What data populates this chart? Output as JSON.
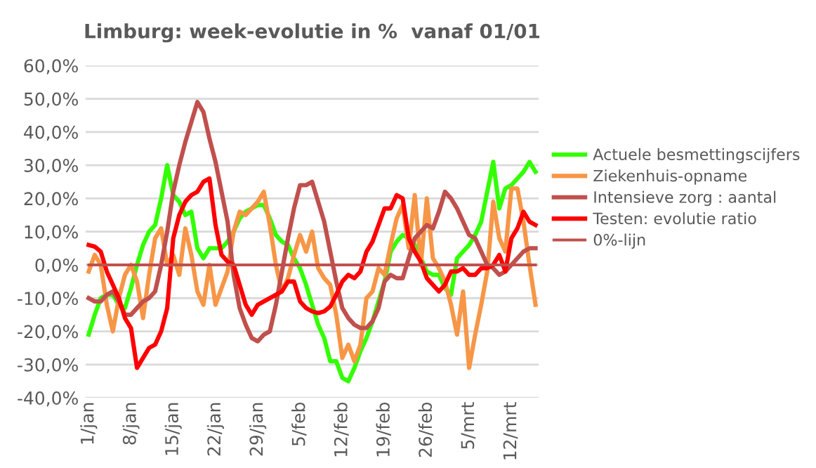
{
  "chart_data": {
    "type": "line",
    "title": "Limburg: week-evolutie in %  vanaf 01/01",
    "categories": [
      "1/jan",
      null,
      null,
      null,
      null,
      null,
      null,
      "8/jan",
      null,
      null,
      null,
      null,
      null,
      null,
      "15/jan",
      null,
      null,
      null,
      null,
      null,
      null,
      "22/jan",
      null,
      null,
      null,
      null,
      null,
      null,
      "29/jan",
      null,
      null,
      null,
      null,
      null,
      null,
      "5/feb",
      null,
      null,
      null,
      null,
      null,
      null,
      "12/feb",
      null,
      null,
      null,
      null,
      null,
      null,
      "19/feb",
      null,
      null,
      null,
      null,
      null,
      null,
      "26/feb",
      null,
      null,
      null,
      null,
      null,
      null,
      "5/mrt",
      null,
      null,
      null,
      null,
      null,
      null,
      "12/mrt",
      null,
      null,
      null,
      null
    ],
    "series": [
      {
        "name": "Actuele besmettingscijfers",
        "color": "#33ff00",
        "values": [
          -21,
          -15,
          -10,
          -9,
          -9,
          -12,
          -13,
          -7,
          0,
          6,
          10,
          12,
          20,
          30,
          21,
          19,
          15,
          16,
          5,
          2,
          5,
          5,
          5,
          7,
          10,
          14,
          16,
          17,
          18,
          18,
          14,
          9,
          7,
          6,
          2,
          -1,
          -6,
          -12,
          -18,
          -22,
          -29,
          -29,
          -34,
          -35,
          -31,
          -26,
          -22,
          -17,
          -11,
          -5,
          4,
          7,
          9,
          8,
          6,
          2,
          -2,
          -3,
          -3,
          -7,
          -9,
          2,
          4,
          6,
          9,
          13,
          22,
          31,
          17,
          23,
          24,
          26,
          28,
          31,
          28
        ]
      },
      {
        "name": "Ziekenhuis-opname",
        "color": "#f79646",
        "values": [
          -2,
          3,
          0,
          -12,
          -20,
          -10,
          -3,
          0,
          -5,
          -16,
          -3,
          8,
          11,
          0,
          3,
          -3,
          11,
          3,
          -8,
          -12,
          0,
          -12,
          -7,
          -2,
          10,
          16,
          15,
          17,
          19,
          22,
          12,
          0,
          -8,
          -4,
          3,
          9,
          4,
          10,
          -1,
          -4,
          -6,
          -15,
          -28,
          -24,
          -29,
          -24,
          -10,
          -8,
          -1,
          -3,
          6,
          14,
          18,
          5,
          21,
          0,
          20,
          2,
          -1,
          -5,
          -12,
          -21,
          -8,
          -31,
          -21,
          -12,
          -2,
          19,
          8,
          4,
          23,
          23,
          13,
          0,
          -12
        ]
      },
      {
        "name": "Intensieve zorg : aantal",
        "color": "#c0504d",
        "values": [
          -10,
          -11,
          -11,
          -9,
          -8,
          -11,
          -15,
          -15,
          -13,
          -11,
          -10,
          -8,
          0,
          10,
          22,
          30,
          37,
          43,
          49,
          46,
          38,
          31,
          22,
          13,
          -3,
          -13,
          -18,
          -22,
          -23,
          -21,
          -20,
          -12,
          -2,
          8,
          17,
          24,
          24,
          25,
          19,
          13,
          4,
          -5,
          -13,
          -16,
          -18,
          -19,
          -19,
          -17,
          -13,
          -5,
          -3,
          -4,
          -4,
          2,
          8,
          10,
          12,
          11,
          16,
          22,
          20,
          17,
          13,
          9,
          8,
          4,
          0,
          -1,
          -3,
          -2,
          0,
          2,
          4,
          5,
          5
        ]
      },
      {
        "name": "Testen: evolutie ratio",
        "color": "#ff0000",
        "values": [
          6,
          5.5,
          4,
          -2,
          -6,
          -10,
          -16,
          -19,
          -31,
          -28,
          -25,
          -24,
          -20,
          -13,
          8,
          15,
          19,
          21,
          22,
          25,
          26,
          12,
          3,
          1,
          0,
          -6,
          -12,
          -15,
          -12,
          -11,
          -10,
          -9,
          -8,
          -5,
          -5,
          -11,
          -13,
          -14,
          -14.5,
          -14,
          -12.5,
          -9,
          -5,
          -3,
          -4,
          -2,
          4,
          7,
          12,
          17,
          17,
          21,
          20,
          8,
          4,
          1,
          -4,
          -6,
          -8,
          -6,
          -2,
          -2,
          -1,
          -3,
          -3,
          -1,
          -1,
          0,
          3,
          -2,
          8,
          11,
          16,
          13,
          12
        ]
      },
      {
        "name": "0%-lijn",
        "color": "#c0504d",
        "values": [
          0,
          0,
          0,
          0,
          0,
          0,
          0,
          0,
          0,
          0,
          0,
          0,
          0,
          0,
          0,
          0,
          0,
          0,
          0,
          0,
          0,
          0,
          0,
          0,
          0,
          0,
          0,
          0,
          0,
          0,
          0,
          0,
          0,
          0,
          0,
          0,
          0,
          0,
          0,
          0,
          0,
          0,
          0,
          0,
          0,
          0,
          0,
          0,
          0,
          0,
          0,
          0,
          0,
          0,
          0,
          0,
          0,
          0,
          0,
          0,
          0,
          0,
          0,
          0,
          0,
          0,
          0,
          0,
          0,
          0,
          0,
          0,
          0,
          0,
          0
        ]
      }
    ],
    "ylim": [
      -40,
      60
    ],
    "yticks": [
      {
        "value": -40,
        "label": "-40,0%"
      },
      {
        "value": -30,
        "label": "-30,0%"
      },
      {
        "value": -20,
        "label": "-20,0%"
      },
      {
        "value": -10,
        "label": "-10,0%"
      },
      {
        "value": 0,
        "label": "0,0%"
      },
      {
        "value": 10,
        "label": "10,0%"
      },
      {
        "value": 20,
        "label": "20,0%"
      },
      {
        "value": 30,
        "label": "30,0%"
      },
      {
        "value": 40,
        "label": "40,0%"
      },
      {
        "value": 50,
        "label": "50,0%"
      },
      {
        "value": 60,
        "label": "60,0%"
      }
    ],
    "grid": "y",
    "legend": "right",
    "marker": "none",
    "line_style": "solid"
  }
}
